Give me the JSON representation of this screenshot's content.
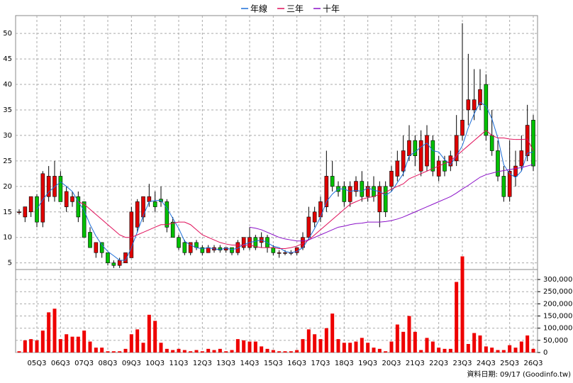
{
  "chart_data": {
    "type": "candlestick",
    "footer": "資料日期: 09/17 (Goodinfo.tw)",
    "categories": [
      null,
      null,
      null,
      "05Q3",
      null,
      null,
      null,
      "06Q3",
      null,
      null,
      null,
      "07Q3",
      null,
      null,
      null,
      "08Q3",
      null,
      null,
      null,
      "09Q3",
      null,
      null,
      null,
      "10Q3",
      null,
      null,
      null,
      "11Q3",
      null,
      null,
      null,
      "12Q3",
      null,
      null,
      null,
      "13Q3",
      null,
      null,
      null,
      "14Q3",
      null,
      null,
      null,
      "15Q3",
      null,
      null,
      null,
      "16Q3",
      null,
      null,
      null,
      "17Q3",
      null,
      null,
      null,
      "18Q3",
      null,
      null,
      null,
      "19Q3",
      null,
      null,
      null,
      "20Q3",
      null,
      null,
      null,
      "21Q3",
      null,
      null,
      null,
      "22Q3",
      null,
      null,
      null,
      "23Q3",
      null,
      null,
      null,
      "24Q3",
      null,
      null,
      null,
      "25Q3",
      null,
      null,
      null,
      "26Q3"
    ],
    "candles": [
      {
        "o": 15,
        "h": 15.5,
        "l": 14.5,
        "c": 15
      },
      {
        "o": 14,
        "h": 16,
        "l": 13,
        "c": 16
      },
      {
        "o": 15,
        "h": 18,
        "l": 14,
        "c": 18
      },
      {
        "o": 18,
        "h": 18.5,
        "l": 12,
        "c": 13
      },
      {
        "o": 13,
        "h": 23,
        "l": 12,
        "c": 22.5
      },
      {
        "o": 18,
        "h": 24,
        "l": 17,
        "c": 22
      },
      {
        "o": 18,
        "h": 25,
        "l": 17,
        "c": 22
      },
      {
        "o": 22,
        "h": 23,
        "l": 17,
        "c": 17
      },
      {
        "o": 16,
        "h": 20,
        "l": 15,
        "c": 19
      },
      {
        "o": 17,
        "h": 19,
        "l": 16,
        "c": 18
      },
      {
        "o": 18,
        "h": 19,
        "l": 13,
        "c": 14
      },
      {
        "o": 17,
        "h": 17,
        "l": 10,
        "c": 10
      },
      {
        "o": 11,
        "h": 12,
        "l": 8,
        "c": 8
      },
      {
        "o": 7,
        "h": 9,
        "l": 6,
        "c": 9
      },
      {
        "o": 9,
        "h": 9,
        "l": 6,
        "c": 7
      },
      {
        "o": 7,
        "h": 7,
        "l": 4.5,
        "c": 5
      },
      {
        "o": 5,
        "h": 5.5,
        "l": 4,
        "c": 4.5
      },
      {
        "o": 4.5,
        "h": 6,
        "l": 4,
        "c": 5.5
      },
      {
        "o": 5,
        "h": 7,
        "l": 5,
        "c": 7
      },
      {
        "o": 6,
        "h": 16,
        "l": 6,
        "c": 15
      },
      {
        "o": 12,
        "h": 17.5,
        "l": 11,
        "c": 17
      },
      {
        "o": 14,
        "h": 18,
        "l": 13,
        "c": 18
      },
      {
        "o": 17,
        "h": 20.5,
        "l": 16,
        "c": 18
      },
      {
        "o": 17,
        "h": 19,
        "l": 15,
        "c": 16
      },
      {
        "o": 17.5,
        "h": 20,
        "l": 16,
        "c": 17
      },
      {
        "o": 17,
        "h": 17.5,
        "l": 11,
        "c": 12
      },
      {
        "o": 13,
        "h": 14,
        "l": 10,
        "c": 10
      },
      {
        "o": 10,
        "h": 10.5,
        "l": 7.5,
        "c": 8
      },
      {
        "o": 9,
        "h": 9.5,
        "l": 6.5,
        "c": 7
      },
      {
        "o": 7,
        "h": 9,
        "l": 6.5,
        "c": 9
      },
      {
        "o": 9,
        "h": 9.5,
        "l": 7.5,
        "c": 8
      },
      {
        "o": 8,
        "h": 8.5,
        "l": 6.5,
        "c": 7
      },
      {
        "o": 7,
        "h": 8.5,
        "l": 7,
        "c": 8
      },
      {
        "o": 7.5,
        "h": 8.5,
        "l": 7,
        "c": 8
      },
      {
        "o": 8,
        "h": 8.5,
        "l": 7,
        "c": 7.5
      },
      {
        "o": 7.5,
        "h": 8,
        "l": 7,
        "c": 8
      },
      {
        "o": 8,
        "h": 8,
        "l": 6.5,
        "c": 7
      },
      {
        "o": 7,
        "h": 9.5,
        "l": 6.5,
        "c": 9
      },
      {
        "o": 8,
        "h": 10,
        "l": 7.5,
        "c": 10
      },
      {
        "o": 8,
        "h": 12,
        "l": 7.5,
        "c": 10
      },
      {
        "o": 10,
        "h": 10.5,
        "l": 7.5,
        "c": 8
      },
      {
        "o": 9,
        "h": 11,
        "l": 8,
        "c": 10
      },
      {
        "o": 10,
        "h": 10.5,
        "l": 7,
        "c": 8
      },
      {
        "o": 8,
        "h": 8.5,
        "l": 6.5,
        "c": 7
      },
      {
        "o": 7,
        "h": 7.5,
        "l": 6,
        "c": 7
      },
      {
        "o": 7,
        "h": 7.5,
        "l": 6.5,
        "c": 7
      },
      {
        "o": 7,
        "h": 7.5,
        "l": 6.5,
        "c": 7
      },
      {
        "o": 7,
        "h": 8,
        "l": 6.5,
        "c": 8
      },
      {
        "o": 8,
        "h": 11,
        "l": 7.5,
        "c": 10
      },
      {
        "o": 10,
        "h": 16,
        "l": 9.5,
        "c": 14
      },
      {
        "o": 13,
        "h": 16,
        "l": 12,
        "c": 15
      },
      {
        "o": 14,
        "h": 18,
        "l": 13,
        "c": 17
      },
      {
        "o": 16,
        "h": 27,
        "l": 15,
        "c": 22
      },
      {
        "o": 22,
        "h": 25,
        "l": 19,
        "c": 20
      },
      {
        "o": 20,
        "h": 21,
        "l": 18,
        "c": 19
      },
      {
        "o": 20,
        "h": 21,
        "l": 16,
        "c": 17
      },
      {
        "o": 17,
        "h": 21,
        "l": 16,
        "c": 20
      },
      {
        "o": 19,
        "h": 22,
        "l": 18,
        "c": 21
      },
      {
        "o": 21,
        "h": 23,
        "l": 17,
        "c": 18
      },
      {
        "o": 18,
        "h": 21,
        "l": 17,
        "c": 20
      },
      {
        "o": 20,
        "h": 22,
        "l": 17,
        "c": 18
      },
      {
        "o": 15,
        "h": 21,
        "l": 12,
        "c": 20
      },
      {
        "o": 20,
        "h": 21,
        "l": 14,
        "c": 15
      },
      {
        "o": 20,
        "h": 24,
        "l": 19,
        "c": 23
      },
      {
        "o": 22,
        "h": 27,
        "l": 21,
        "c": 25
      },
      {
        "o": 23,
        "h": 30,
        "l": 22,
        "c": 27
      },
      {
        "o": 26,
        "h": 32,
        "l": 25,
        "c": 29
      },
      {
        "o": 29,
        "h": 30,
        "l": 24,
        "c": 26
      },
      {
        "o": 23,
        "h": 31,
        "l": 22,
        "c": 29
      },
      {
        "o": 24,
        "h": 32,
        "l": 23,
        "c": 30
      },
      {
        "o": 29,
        "h": 30,
        "l": 22,
        "c": 23
      },
      {
        "o": 22,
        "h": 26,
        "l": 21,
        "c": 25
      },
      {
        "o": 25,
        "h": 26,
        "l": 22,
        "c": 23
      },
      {
        "o": 24,
        "h": 27,
        "l": 23,
        "c": 26
      },
      {
        "o": 25,
        "h": 34,
        "l": 24,
        "c": 30
      },
      {
        "o": 30,
        "h": 52,
        "l": 29,
        "c": 33
      },
      {
        "o": 35,
        "h": 46,
        "l": 32,
        "c": 37
      },
      {
        "o": 35,
        "h": 43,
        "l": 33,
        "c": 37
      },
      {
        "o": 36,
        "h": 43,
        "l": 35,
        "c": 39
      },
      {
        "o": 40,
        "h": 42,
        "l": 29,
        "c": 30
      },
      {
        "o": 30,
        "h": 35,
        "l": 26,
        "c": 27
      },
      {
        "o": 27,
        "h": 29,
        "l": 21,
        "c": 22
      },
      {
        "o": 22,
        "h": 24,
        "l": 17,
        "c": 18
      },
      {
        "o": 18,
        "h": 29,
        "l": 17,
        "c": 23
      },
      {
        "o": 22,
        "h": 27,
        "l": 20,
        "c": 24
      },
      {
        "o": 24,
        "h": 30,
        "l": 23,
        "c": 27
      },
      {
        "o": 26,
        "h": 36,
        "l": 25,
        "c": 32
      },
      {
        "o": 33,
        "h": 34,
        "l": 23,
        "c": 24
      }
    ],
    "up_color": "#e00000",
    "down_color": "#00c000",
    "volume": [
      5000,
      50000,
      55000,
      50000,
      90000,
      165000,
      180000,
      55000,
      75000,
      65000,
      65000,
      90000,
      45000,
      20000,
      20000,
      5000,
      5000,
      5000,
      15000,
      75000,
      95000,
      40000,
      155000,
      130000,
      40000,
      15000,
      10000,
      15000,
      10000,
      5000,
      10000,
      5000,
      15000,
      10000,
      15000,
      5000,
      10000,
      55000,
      50000,
      45000,
      45000,
      25000,
      15000,
      10000,
      5000,
      5000,
      5000,
      10000,
      55000,
      95000,
      75000,
      55000,
      100000,
      160000,
      55000,
      40000,
      40000,
      45000,
      60000,
      40000,
      20000,
      15000,
      5000,
      45000,
      115000,
      85000,
      150000,
      85000,
      10000,
      60000,
      45000,
      20000,
      15000,
      15000,
      290000,
      395000,
      35000,
      80000,
      70000,
      25000,
      20000,
      10000,
      10000,
      30000,
      20000,
      45000,
      70000,
      15000
    ],
    "volume_color": "#ee0000",
    "series": [
      {
        "name": "年線",
        "color": "#1e6fd9",
        "values": [
          null,
          null,
          null,
          15.5,
          17.4,
          18.9,
          19.9,
          20.9,
          20,
          19,
          17,
          15.25,
          12.5,
          10.25,
          8.5,
          7.25,
          6.4,
          5.5,
          5.5,
          8,
          11.1,
          14.25,
          17,
          17.25,
          17.25,
          15.75,
          13.75,
          11.75,
          9.25,
          8.5,
          8,
          7.75,
          8,
          7.75,
          7.6,
          7.9,
          7.6,
          7.9,
          8.6,
          9,
          9.25,
          9.5,
          9,
          8.25,
          8,
          7.25,
          7,
          7.25,
          8,
          9.75,
          11.75,
          14,
          17,
          18.5,
          19.5,
          19.5,
          19,
          19.25,
          19,
          19.75,
          19.25,
          19,
          18.25,
          19,
          20.75,
          22.5,
          26,
          26.75,
          27.75,
          28.5,
          27,
          26.75,
          25.25,
          24.25,
          26,
          28,
          31.5,
          34.25,
          36.5,
          35.75,
          33.25,
          29.5,
          24.25,
          22.5,
          21.75,
          23,
          26.5,
          26.75
        ]
      },
      {
        "name": "三年",
        "color": "#e0105a",
        "values": [
          null,
          null,
          null,
          null,
          null,
          null,
          null,
          null,
          null,
          null,
          17,
          16.5,
          15.5,
          14.5,
          13.5,
          12.5,
          11.5,
          10.5,
          10,
          10,
          10.5,
          11,
          11.5,
          12,
          12.5,
          12.5,
          12.8,
          13,
          13,
          12.5,
          11.5,
          10.5,
          10,
          9.5,
          9,
          8.7,
          8.5,
          8.5,
          8.5,
          8.5,
          8.2,
          8,
          8,
          8,
          7.8,
          7.8,
          8,
          8.3,
          8.8,
          9.5,
          10.5,
          11.5,
          12.5,
          13.5,
          14.5,
          15.5,
          16.5,
          17,
          17.5,
          17.8,
          18,
          18.5,
          18.8,
          19.5,
          20,
          20.5,
          21.5,
          22,
          22.5,
          23,
          23.5,
          24,
          24.5,
          25,
          26,
          27,
          28,
          29,
          30,
          31,
          30,
          29.5,
          29.5,
          29.3,
          29.2,
          29.2,
          29.3,
          27
        ]
      },
      {
        "name": "十年",
        "color": "#8a10c8",
        "values": [
          null,
          null,
          null,
          null,
          null,
          null,
          null,
          null,
          null,
          null,
          null,
          null,
          null,
          null,
          null,
          null,
          null,
          null,
          null,
          null,
          null,
          null,
          null,
          null,
          null,
          null,
          null,
          null,
          null,
          null,
          null,
          null,
          null,
          null,
          null,
          null,
          null,
          null,
          null,
          12,
          11.8,
          11.5,
          11,
          10.5,
          10,
          9.7,
          9.5,
          9.3,
          9.3,
          9.5,
          10,
          10.5,
          11,
          11.5,
          12,
          12.2,
          12.5,
          12.7,
          12.8,
          13,
          13,
          13,
          13.1,
          13.3,
          13.6,
          14,
          14.5,
          15,
          15.5,
          16,
          16.5,
          17,
          17.5,
          18,
          18.7,
          19.5,
          20.2,
          21,
          21.8,
          22.3,
          22.6,
          22.9,
          23.1,
          23.3,
          23.5,
          23.7,
          24,
          24.3
        ]
      }
    ],
    "ylim": [
      3.7,
      53.5
    ],
    "yticks": [
      5,
      10,
      15,
      20,
      25,
      30,
      35,
      40,
      45,
      50
    ],
    "y2lim": [
      0,
      341000
    ],
    "y2ticks": [
      0,
      {
        "value": 50000,
        "label": "50,000"
      },
      {
        "value": 100000,
        "label": "100,000"
      },
      {
        "value": 150000,
        "label": "150,000"
      },
      {
        "value": 200000,
        "label": "200,000"
      },
      {
        "value": 250000,
        "label": "250,000"
      },
      {
        "value": 300000,
        "label": "300,000"
      }
    ],
    "grid": true,
    "legend": "top"
  }
}
